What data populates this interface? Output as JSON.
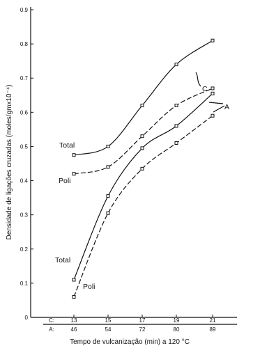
{
  "chart_data": {
    "type": "line",
    "xlabel": "Tempo de vulcanização (min) a 120 °C",
    "ylabel": "Densidade de ligações cruzadas (moles/gmx10⁻⁴)",
    "ylim": [
      0,
      0.9
    ],
    "y_ticks": [
      "0",
      "0.1",
      "0.2",
      "0.3",
      "0.4",
      "0.5",
      "0.6",
      "0.7",
      "0.8",
      "0.9"
    ],
    "x_axes": [
      {
        "name": "C:",
        "ticks": [
          "13",
          "15",
          "17",
          "19",
          "21"
        ]
      },
      {
        "name": "A:",
        "ticks": [
          "46",
          "54",
          "72",
          "80",
          "89"
        ]
      }
    ],
    "series": [
      {
        "group": "C",
        "kind": "Total",
        "values": [
          0.475,
          0.5,
          0.62,
          0.74,
          0.81
        ]
      },
      {
        "group": "C",
        "kind": "Poli",
        "values": [
          0.42,
          0.44,
          0.53,
          0.62,
          0.67
        ]
      },
      {
        "group": "A",
        "kind": "Total",
        "values": [
          0.11,
          0.355,
          0.495,
          0.56,
          0.655
        ]
      },
      {
        "group": "A",
        "kind": "Poli",
        "values": [
          0.06,
          0.305,
          0.435,
          0.51,
          0.59
        ]
      }
    ],
    "annotations": {
      "C_total": "Total",
      "C_poli": "Poli",
      "A_total": "Total",
      "A_poli": "Poli",
      "group_c": "C",
      "group_a": "A"
    }
  }
}
